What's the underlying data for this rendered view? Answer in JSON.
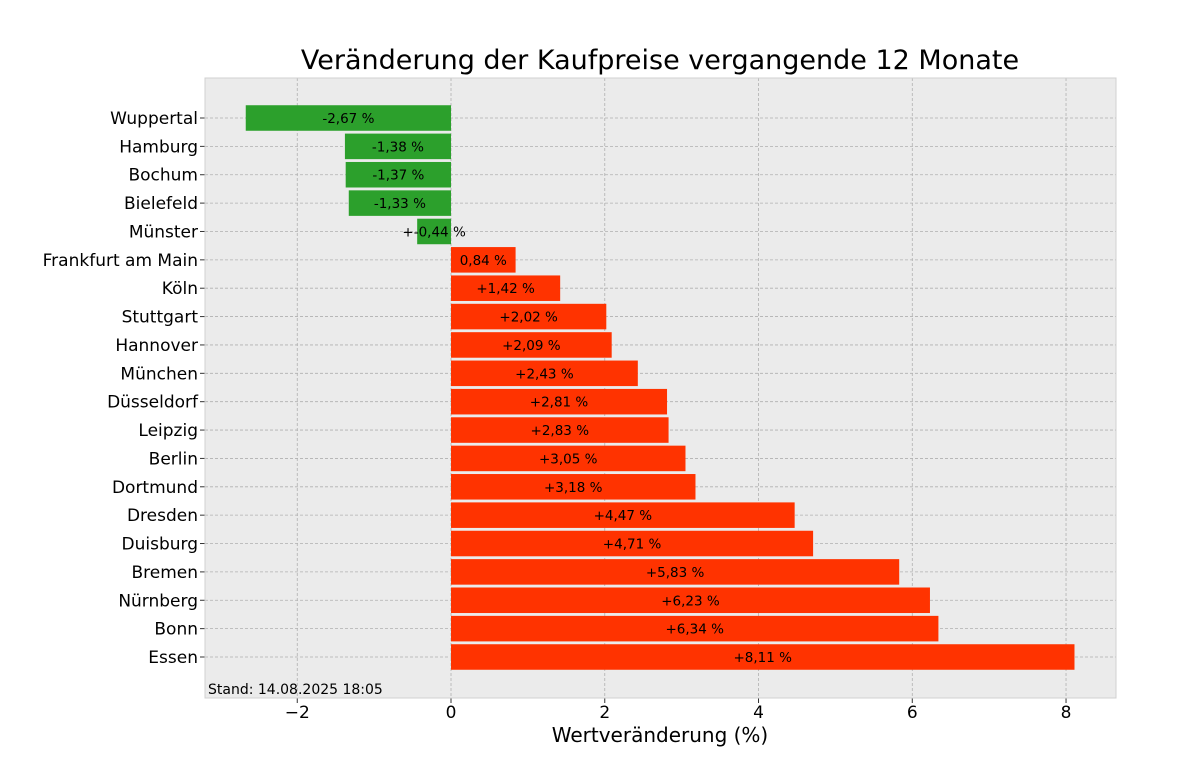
{
  "chart_data": {
    "type": "bar",
    "orientation": "horizontal",
    "title": "Veränderung der Kaufpreise vergangende 12 Monate",
    "xlabel": "Wertveränderung (%)",
    "ylabel": "",
    "xlim": [
      -3.2,
      8.65
    ],
    "xticks": [
      -2,
      0,
      2,
      4,
      6,
      8
    ],
    "xtick_labels": [
      "−2",
      "0",
      "2",
      "4",
      "6",
      "8"
    ],
    "grid": true,
    "footnote": "Stand: 14.08.2025 18:05",
    "colors": {
      "negative": "#2ca02c",
      "positive": "#ff3300",
      "background": "#ebebeb",
      "grid": "#b0b0b0"
    },
    "categories": [
      "Wuppertal",
      "Hamburg",
      "Bochum",
      "Bielefeld",
      "Münster",
      "Frankfurt am Main",
      "Köln",
      "Stuttgart",
      "Hannover",
      "München",
      "Düsseldorf",
      "Leipzig",
      "Berlin",
      "Dortmund",
      "Dresden",
      "Duisburg",
      "Bremen",
      "Nürnberg",
      "Bonn",
      "Essen"
    ],
    "values": [
      -2.67,
      -1.38,
      -1.37,
      -1.33,
      -0.44,
      0.84,
      1.42,
      2.02,
      2.09,
      2.43,
      2.81,
      2.83,
      3.05,
      3.18,
      4.47,
      4.71,
      5.83,
      6.23,
      6.34,
      8.11
    ],
    "data_labels": [
      "-2,67 %",
      "-1,38 %",
      "-1,37 %",
      "-1,33 %",
      "+-0,44 %",
      "0,84 %",
      "+1,42 %",
      "+2,02 %",
      "+2,09 %",
      "+2,43 %",
      "+2,81 %",
      "+2,83 %",
      "+3,05 %",
      "+3,18 %",
      "+4,47 %",
      "+4,71 %",
      "+5,83 %",
      "+6,23 %",
      "+6,34 %",
      "+8,11 %"
    ]
  }
}
